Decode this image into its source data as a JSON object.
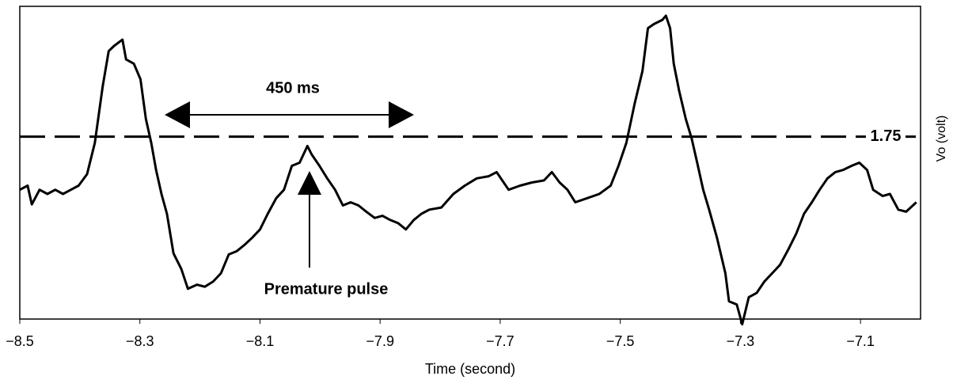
{
  "chart_data": {
    "type": "line",
    "x_label": "Time (second)",
    "y_label": "Vo (volt)",
    "color": "#000000",
    "xlim": [
      -8.5,
      -7.0
    ],
    "ylim": [
      0,
      3
    ],
    "xticks": [
      {
        "value": -8.5,
        "label": "−8.5"
      },
      {
        "value": -8.3,
        "label": "−8.3"
      },
      {
        "value": -8.1,
        "label": "−8.1"
      },
      {
        "value": -7.9,
        "label": "−7.9"
      },
      {
        "value": -7.7,
        "label": "−7.7"
      },
      {
        "value": -7.5,
        "label": "−7.5"
      },
      {
        "value": -7.3,
        "label": "−7.3"
      },
      {
        "value": -7.1,
        "label": "−7.1"
      }
    ],
    "reference_line": 1.75,
    "span_annotation": "450 ms",
    "pulse_annotation": "Premature pulse",
    "x": [
      -8.5,
      -8.487,
      -8.48,
      -8.467,
      -8.454,
      -8.441,
      -8.428,
      -8.415,
      -8.402,
      -8.388,
      -8.375,
      -8.362,
      -8.352,
      -8.343,
      -8.329,
      -8.323,
      -8.31,
      -8.299,
      -8.29,
      -8.281,
      -8.273,
      -8.264,
      -8.255,
      -8.244,
      -8.231,
      -8.22,
      -8.205,
      -8.192,
      -8.178,
      -8.165,
      -8.152,
      -8.139,
      -8.126,
      -8.113,
      -8.1,
      -8.087,
      -8.073,
      -8.06,
      -8.047,
      -8.034,
      -8.021,
      -8.014,
      -8.001,
      -7.988,
      -7.975,
      -7.962,
      -7.949,
      -7.936,
      -7.923,
      -7.909,
      -7.896,
      -7.883,
      -7.87,
      -7.857,
      -7.844,
      -7.831,
      -7.818,
      -7.798,
      -7.778,
      -7.759,
      -7.739,
      -7.719,
      -7.706,
      -7.686,
      -7.667,
      -7.647,
      -7.627,
      -7.614,
      -7.601,
      -7.588,
      -7.575,
      -7.555,
      -7.535,
      -7.516,
      -7.503,
      -7.49,
      -7.476,
      -7.463,
      -7.454,
      -7.444,
      -7.43,
      -7.424,
      -7.417,
      -7.411,
      -7.402,
      -7.391,
      -7.381,
      -7.372,
      -7.362,
      -7.352,
      -7.339,
      -7.325,
      -7.319,
      -7.306,
      -7.297,
      -7.286,
      -7.273,
      -7.26,
      -7.247,
      -7.234,
      -7.22,
      -7.207,
      -7.194,
      -7.181,
      -7.168,
      -7.155,
      -7.142,
      -7.129,
      -7.115,
      -7.102,
      -7.089,
      -7.079,
      -7.063,
      -7.051,
      -7.037,
      -7.024,
      -7.007
    ],
    "values": [
      1.24,
      1.28,
      1.1,
      1.24,
      1.2,
      1.24,
      1.2,
      1.24,
      1.28,
      1.39,
      1.69,
      2.23,
      2.57,
      2.62,
      2.68,
      2.49,
      2.45,
      2.3,
      1.92,
      1.69,
      1.43,
      1.2,
      1.01,
      0.63,
      0.48,
      0.29,
      0.33,
      0.31,
      0.36,
      0.44,
      0.62,
      0.65,
      0.71,
      0.78,
      0.86,
      1.01,
      1.16,
      1.24,
      1.47,
      1.5,
      1.66,
      1.58,
      1.47,
      1.35,
      1.24,
      1.09,
      1.12,
      1.09,
      1.03,
      0.97,
      0.99,
      0.95,
      0.92,
      0.86,
      0.95,
      1.01,
      1.05,
      1.07,
      1.2,
      1.28,
      1.35,
      1.37,
      1.41,
      1.24,
      1.28,
      1.31,
      1.33,
      1.41,
      1.31,
      1.24,
      1.12,
      1.16,
      1.2,
      1.28,
      1.47,
      1.69,
      2.07,
      2.38,
      2.79,
      2.83,
      2.87,
      2.91,
      2.79,
      2.45,
      2.19,
      1.92,
      1.73,
      1.5,
      1.24,
      1.05,
      0.78,
      0.44,
      0.17,
      0.14,
      -0.05,
      0.21,
      0.25,
      0.36,
      0.44,
      0.52,
      0.67,
      0.82,
      1.01,
      1.12,
      1.24,
      1.35,
      1.41,
      1.43,
      1.47,
      1.5,
      1.43,
      1.24,
      1.18,
      1.2,
      1.05,
      1.03,
      1.12
    ]
  }
}
